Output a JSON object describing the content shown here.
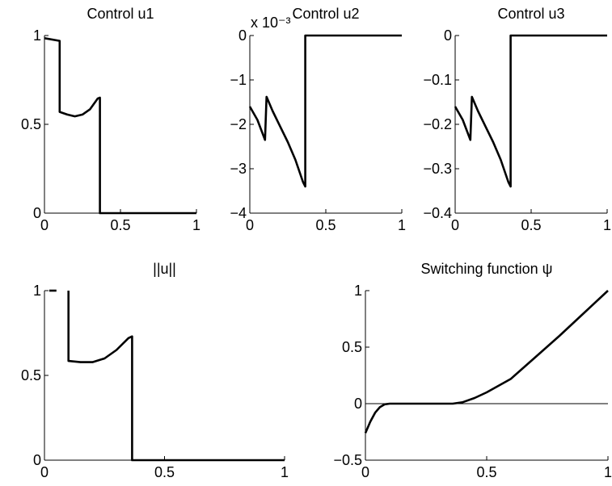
{
  "chart_data": [
    {
      "type": "line",
      "title": "Control u1",
      "xlabel": "",
      "ylabel": "",
      "xlim": [
        0,
        1
      ],
      "ylim": [
        0,
        1
      ],
      "xticks": [
        0,
        0.5,
        1
      ],
      "xtick_labels": [
        "0",
        "0.5",
        "1"
      ],
      "yticks": [
        0,
        0.5,
        1
      ],
      "ytick_labels": [
        "0",
        "0.5",
        "1"
      ],
      "grid": false,
      "series": [
        {
          "x": [
            0,
            0.1,
            0.1,
            0.1,
            0.15,
            0.2,
            0.25,
            0.3,
            0.35,
            0.365,
            0.365,
            1
          ],
          "y": [
            0.985,
            0.97,
            0.97,
            0.57,
            0.555,
            0.545,
            0.555,
            0.585,
            0.645,
            0.65,
            0,
            0
          ]
        }
      ]
    },
    {
      "type": "line",
      "title": "Control u2",
      "exponent_label": "x 10⁻³",
      "xlabel": "",
      "ylabel": "",
      "xlim": [
        0,
        1
      ],
      "ylim": [
        -4,
        0
      ],
      "xticks": [
        0,
        0.5,
        1
      ],
      "xtick_labels": [
        "0",
        "0.5",
        "1"
      ],
      "yticks": [
        0,
        -1,
        -2,
        -3,
        -4
      ],
      "ytick_labels": [
        "0",
        "−1",
        "−2",
        "−3",
        "−4"
      ],
      "grid": false,
      "series": [
        {
          "x": [
            0,
            0.05,
            0.1,
            0.11,
            0.15,
            0.2,
            0.25,
            0.3,
            0.35,
            0.365,
            0.365,
            1
          ],
          "y": [
            -1.6,
            -1.9,
            -2.35,
            -1.38,
            -1.7,
            -2.05,
            -2.4,
            -2.8,
            -3.3,
            -3.4,
            0,
            0
          ]
        }
      ]
    },
    {
      "type": "line",
      "title": "Control u3",
      "xlabel": "",
      "ylabel": "",
      "xlim": [
        0,
        1
      ],
      "ylim": [
        -0.4,
        0
      ],
      "xticks": [
        0,
        0.5,
        1
      ],
      "xtick_labels": [
        "0",
        "0.5",
        "1"
      ],
      "yticks": [
        0,
        -0.1,
        -0.2,
        -0.3,
        -0.4
      ],
      "ytick_labels": [
        "0",
        "−0.1",
        "−0.2",
        "−0.3",
        "−0.4"
      ],
      "grid": false,
      "series": [
        {
          "x": [
            0,
            0.05,
            0.1,
            0.11,
            0.15,
            0.2,
            0.25,
            0.3,
            0.35,
            0.365,
            0.365,
            1
          ],
          "y": [
            -0.16,
            -0.19,
            -0.235,
            -0.138,
            -0.17,
            -0.205,
            -0.24,
            -0.28,
            -0.33,
            -0.34,
            0,
            0
          ]
        }
      ]
    },
    {
      "type": "line",
      "title": "||u||",
      "xlabel": "",
      "ylabel": "",
      "xlim": [
        0,
        1
      ],
      "ylim": [
        0,
        1
      ],
      "xticks": [
        0,
        0.5,
        1
      ],
      "xtick_labels": [
        "0",
        "0.5",
        "1"
      ],
      "yticks": [
        0,
        0.5,
        1
      ],
      "ytick_labels": [
        "0",
        "0.5",
        "1"
      ],
      "grid": false,
      "series": [
        {
          "x": [
            0.02,
            0.05
          ],
          "y": [
            1,
            1
          ]
        },
        {
          "x": [
            0.1,
            0.1,
            0.15,
            0.2,
            0.25,
            0.3,
            0.35,
            0.365,
            0.365,
            1
          ],
          "y": [
            1,
            0.585,
            0.578,
            0.578,
            0.6,
            0.65,
            0.72,
            0.73,
            0,
            0
          ]
        }
      ]
    },
    {
      "type": "line",
      "title": "Switching function ψ",
      "xlabel": "",
      "ylabel": "",
      "xlim": [
        0,
        1
      ],
      "ylim": [
        -0.5,
        1
      ],
      "xticks": [
        0,
        0.5,
        1
      ],
      "xtick_labels": [
        "0",
        "0.5",
        "1"
      ],
      "yticks": [
        -0.5,
        0,
        0.5,
        1
      ],
      "ytick_labels": [
        "−0.5",
        "0",
        "0.5",
        "1"
      ],
      "grid": false,
      "reference_line_y": 0,
      "series": [
        {
          "x": [
            0,
            0.02,
            0.04,
            0.06,
            0.08,
            0.1,
            0.12,
            0.2,
            0.3,
            0.36,
            0.4,
            0.45,
            0.5,
            0.6,
            0.7,
            0.8,
            0.9,
            1
          ],
          "y": [
            -0.26,
            -0.16,
            -0.08,
            -0.03,
            -0.006,
            0,
            0,
            0,
            0,
            0,
            0.012,
            0.05,
            0.1,
            0.22,
            0.41,
            0.6,
            0.8,
            1
          ]
        }
      ]
    }
  ]
}
